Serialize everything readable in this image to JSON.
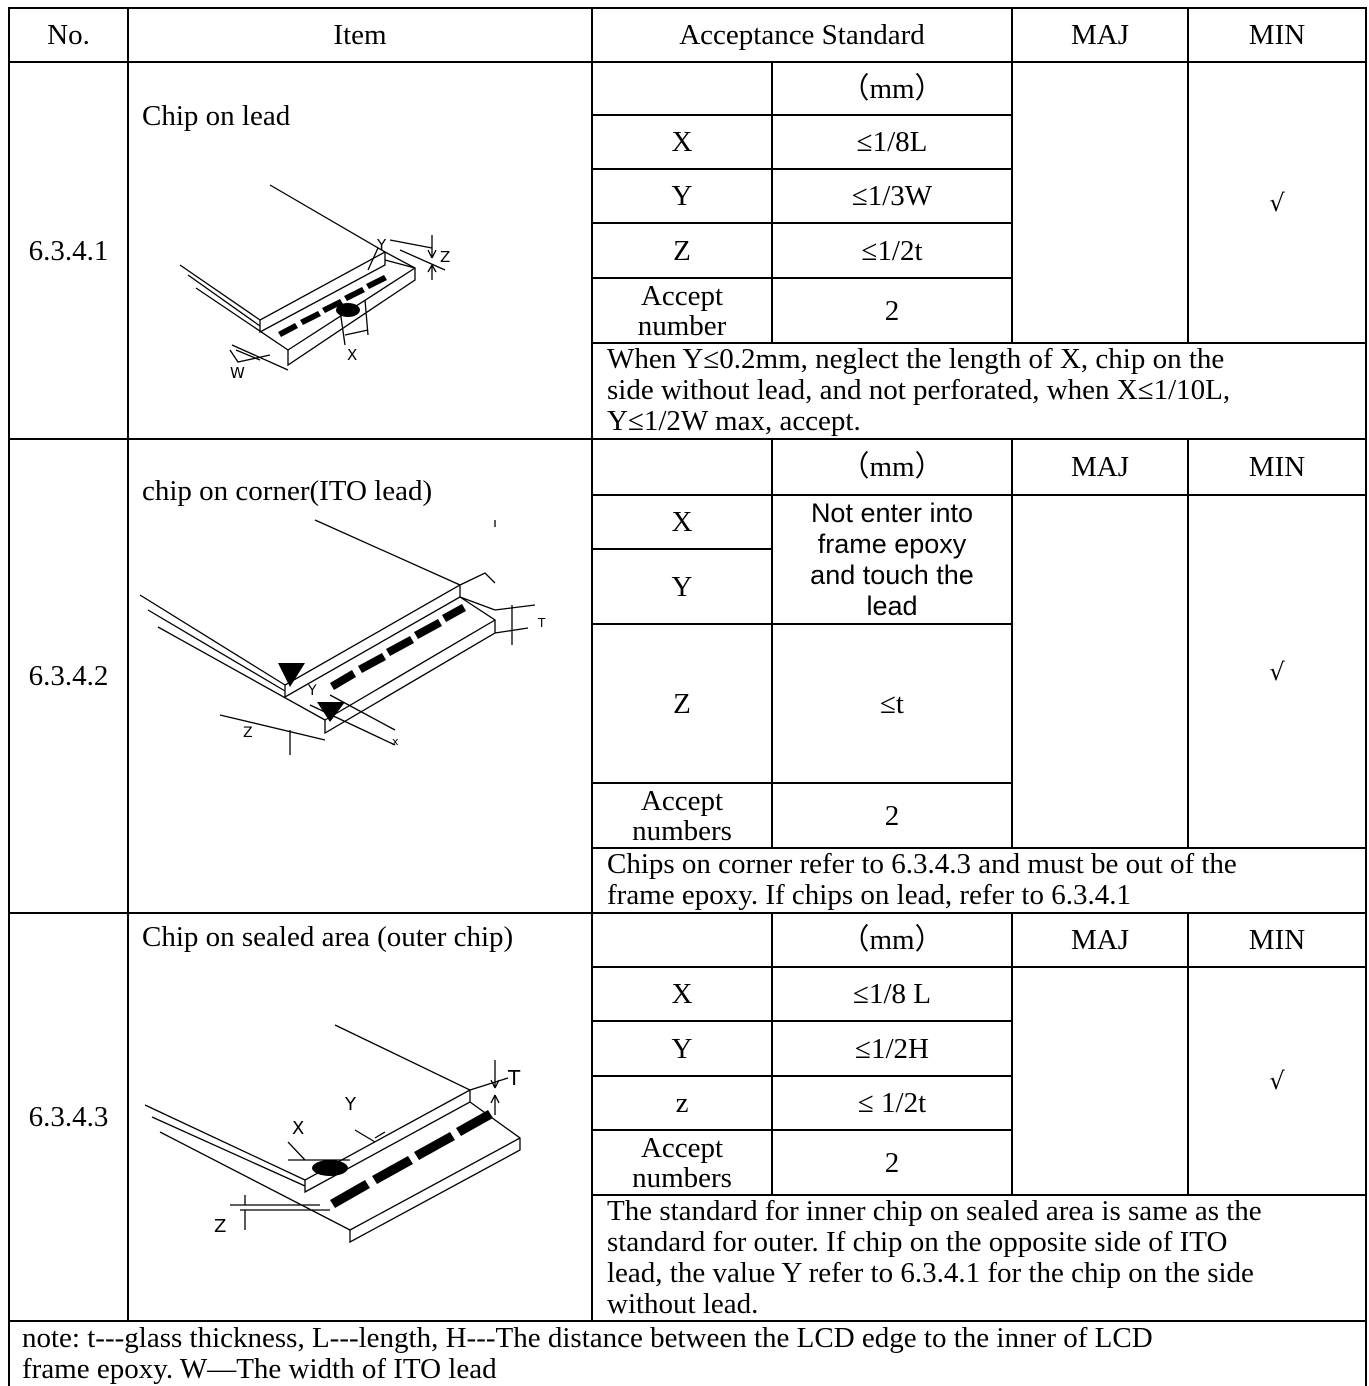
{
  "header": {
    "no": "No.",
    "item": "Item",
    "acceptance": "Acceptance Standard",
    "maj": "MAJ",
    "min": "MIN"
  },
  "sections": [
    {
      "no": "6.3.4.1",
      "item": "Chip on lead",
      "unit": "（mm）",
      "rows": [
        {
          "label": "X",
          "value": "≤1/8L"
        },
        {
          "label": "Y",
          "value": "≤1/3W"
        },
        {
          "label": "Z",
          "value": "≤1/2t"
        },
        {
          "label": "Accept\nnumber",
          "value": "2"
        }
      ],
      "min_mark": "√",
      "note": "When Y≤0.2mm, neglect the length of X, chip on the\nside without lead, and not perforated, when X≤1/10L,\nY≤1/2W max, accept.",
      "figure_labels": {
        "y": "Y",
        "z": "Z",
        "x": "X",
        "w": "W"
      }
    },
    {
      "no": "6.3.4.2",
      "item": "chip on corner(ITO lead)",
      "unit": "（mm）",
      "maj": "MAJ",
      "min": "MIN",
      "rows": [
        {
          "label": "X",
          "value": "Not enter into\nframe epoxy\nand touch the\nlead"
        },
        {
          "label": "Y",
          "value": ""
        },
        {
          "label": "Z",
          "value": "≤t"
        },
        {
          "label": "Accept\nnumbers",
          "value": "2"
        }
      ],
      "min_mark": "√",
      "note": "Chips on corner refer to 6.3.4.3 and must be out of the\n frame epoxy. If chips on lead, refer to 6.3.4.1",
      "figure_labels": {
        "t": "T",
        "y": "Y",
        "z": "Z",
        "x": "x"
      }
    },
    {
      "no": "6.3.4.3",
      "item": "Chip on sealed area (outer chip)",
      "unit": "（mm）",
      "maj": "MAJ",
      "min": "MIN",
      "rows": [
        {
          "label": "X",
          "value": "≤1/8 L"
        },
        {
          "label": "Y",
          "value": "≤1/2H"
        },
        {
          "label": "z",
          "value": "≤ 1/2t"
        },
        {
          "label": "Accept\nnumbers",
          "value": "2"
        }
      ],
      "min_mark": "√",
      "note": "The standard for inner chip on sealed area is same as the\nstandard for outer. If chip on the opposite side of ITO\nlead, the value Y refer to 6.3.4.1 for the chip on the side\nwithout lead.",
      "figure_labels": {
        "t": "T",
        "y": "Y",
        "x": "X",
        "z": "Z"
      }
    }
  ],
  "footer_note": "note: t---glass thickness, L---length, H---The distance between the LCD edge to the inner of LCD\nframe epoxy. W—The width of ITO lead"
}
